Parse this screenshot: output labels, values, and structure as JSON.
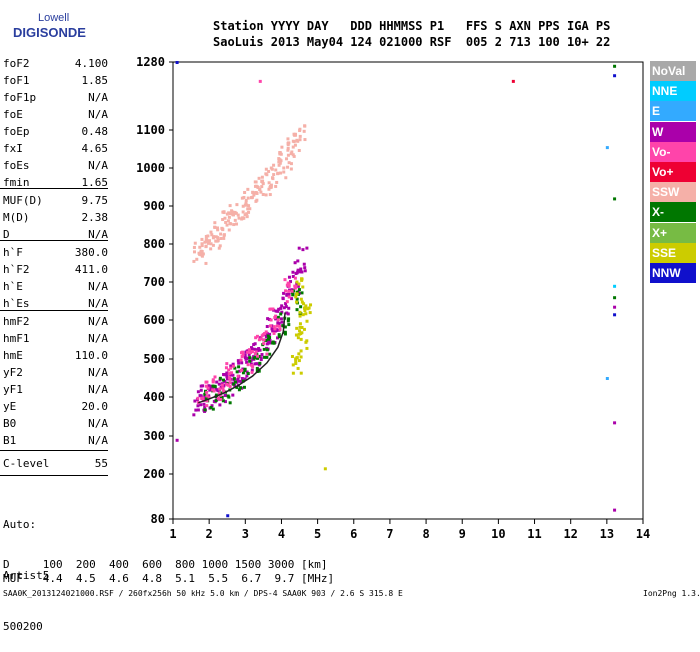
{
  "logo": {
    "line1": "Lowell",
    "line2": "DIGISONDE"
  },
  "header": {
    "line1": "Station YYYY DAY   DDD HHMMSS P1   FFS S AXN PPS IGA PS",
    "line2": "SaoLuis 2013 May04 124 021000 RSF  005 2 713 100 10+ 22"
  },
  "params": [
    {
      "name": "foF2",
      "value": "4.100"
    },
    {
      "name": "foF1",
      "value": "1.85"
    },
    {
      "name": "foF1p",
      "value": "N/A"
    },
    {
      "name": "foE",
      "value": "N/A"
    },
    {
      "name": "foEp",
      "value": "0.48"
    },
    {
      "name": "fxI",
      "value": "4.65"
    },
    {
      "name": "foEs",
      "value": "N/A"
    },
    {
      "name": "fmin",
      "value": "1.65"
    },
    {
      "name": "MUF(D)",
      "value": "9.75"
    },
    {
      "name": "M(D)",
      "value": "2.38"
    },
    {
      "name": "D",
      "value": "N/A"
    },
    {
      "name": "h`F",
      "value": "380.0"
    },
    {
      "name": "h`F2",
      "value": "411.0"
    },
    {
      "name": "h`E",
      "value": "N/A"
    },
    {
      "name": "h`Es",
      "value": "N/A"
    },
    {
      "name": "hmF2",
      "value": "N/A"
    },
    {
      "name": "hmF1",
      "value": "N/A"
    },
    {
      "name": "hmE",
      "value": "110.0"
    },
    {
      "name": "yF2",
      "value": "N/A"
    },
    {
      "name": "yF1",
      "value": "N/A"
    },
    {
      "name": "yE",
      "value": "20.0"
    },
    {
      "name": "B0",
      "value": "N/A"
    },
    {
      "name": "B1",
      "value": "N/A"
    },
    {
      "name": "C-level",
      "value": "55"
    }
  ],
  "auto": {
    "line1": "Auto:",
    "line2": "Artist5",
    "line3": "500200"
  },
  "muf_table": {
    "d_row": "D     100  200  400  600  800 1000 1500 3000 [km]",
    "muf_row": "MUF   4.4  4.5  4.6  4.8  5.1  5.5  6.7  9.7 [MHz]"
  },
  "footer": {
    "left": "SAA0K_2013124021000.RSF / 260fx256h 50 kHz 5.0 km / DPS-4 SAA0K 903 / 2.6 S 315.8 E",
    "right": "Ion2Png 1.3.17"
  },
  "legend": [
    {
      "label": "NoVal",
      "color": "#a9a9a9"
    },
    {
      "label": "NNE",
      "color": "#00ccff"
    },
    {
      "label": "E",
      "color": "#33aaff"
    },
    {
      "label": "W",
      "color": "#aa00aa"
    },
    {
      "label": "Vo-",
      "color": "#ff44aa"
    },
    {
      "label": "Vo+",
      "color": "#ee0033"
    },
    {
      "label": "SSW",
      "color": "#f5b0a8"
    },
    {
      "label": "X-",
      "color": "#007700"
    },
    {
      "label": "X+",
      "color": "#77bb44"
    },
    {
      "label": "SSE",
      "color": "#cccc00"
    },
    {
      "label": "NNW",
      "color": "#1010cc"
    }
  ],
  "chart_data": {
    "type": "scatter",
    "xlim": [
      1,
      14
    ],
    "ylim": [
      80,
      1280
    ],
    "x_ticks": [
      "1",
      "2",
      "3",
      "4",
      "5",
      "6",
      "7",
      "8",
      "9",
      "10",
      "11",
      "12",
      "13",
      "14"
    ],
    "y_ticks": [
      {
        "v": 80,
        "label": "80"
      },
      {
        "v": 200,
        "label": "200"
      },
      {
        "v": 300,
        "label": "300"
      },
      {
        "v": 400,
        "label": "400"
      },
      {
        "v": 500,
        "label": "500"
      },
      {
        "v": 600,
        "label": "600"
      },
      {
        "v": 700,
        "label": "700"
      },
      {
        "v": 800,
        "label": "800"
      },
      {
        "v": 900,
        "label": "900"
      },
      {
        "v": 1000,
        "label": "1000"
      },
      {
        "v": 1100,
        "label": "1100"
      },
      {
        "v": 1280,
        "label": "1280"
      }
    ],
    "trace_clusters": [
      {
        "color": "#f5b0a8",
        "region": "upper-diffuse",
        "points": [
          [
            1.7,
            780
          ],
          [
            1.9,
            800
          ],
          [
            2.1,
            820
          ],
          [
            2.3,
            840
          ],
          [
            2.5,
            860
          ],
          [
            2.7,
            880
          ],
          [
            2.9,
            900
          ],
          [
            3.1,
            920
          ],
          [
            3.3,
            940
          ],
          [
            3.5,
            960
          ],
          [
            3.7,
            980
          ],
          [
            3.9,
            1000
          ],
          [
            4.1,
            1030
          ],
          [
            4.3,
            1060
          ],
          [
            4.5,
            1090
          ]
        ]
      },
      {
        "color": "#aa00aa",
        "region": "lower-trace",
        "points": [
          [
            1.7,
            390
          ],
          [
            1.9,
            400
          ],
          [
            2.1,
            410
          ],
          [
            2.3,
            425
          ],
          [
            2.5,
            440
          ],
          [
            2.7,
            460
          ],
          [
            2.9,
            480
          ],
          [
            3.1,
            500
          ],
          [
            3.3,
            520
          ],
          [
            3.5,
            545
          ],
          [
            3.7,
            575
          ],
          [
            3.9,
            610
          ],
          [
            4.1,
            650
          ],
          [
            4.3,
            700
          ],
          [
            4.5,
            760
          ]
        ]
      },
      {
        "color": "#007700",
        "region": "lower-trace",
        "points": [
          [
            2.0,
            400
          ],
          [
            2.4,
            420
          ],
          [
            2.8,
            450
          ],
          [
            3.2,
            490
          ],
          [
            3.6,
            530
          ],
          [
            4.0,
            590
          ],
          [
            4.4,
            650
          ]
        ]
      },
      {
        "color": "#ff44aa",
        "region": "lower-trace",
        "points": [
          [
            1.8,
            410
          ],
          [
            2.2,
            430
          ],
          [
            2.6,
            460
          ],
          [
            3.0,
            500
          ],
          [
            3.4,
            540
          ],
          [
            3.8,
            600
          ],
          [
            4.2,
            680
          ]
        ]
      },
      {
        "color": "#cccc00",
        "region": "lower-trace",
        "points": [
          [
            4.4,
            500
          ],
          [
            4.5,
            560
          ],
          [
            4.6,
            620
          ],
          [
            4.5,
            680
          ]
        ]
      }
    ],
    "scaled_trace": [
      [
        1.7,
        385
      ],
      [
        2.0,
        395
      ],
      [
        2.4,
        410
      ],
      [
        2.8,
        430
      ],
      [
        3.2,
        455
      ],
      [
        3.6,
        490
      ],
      [
        3.9,
        530
      ],
      [
        4.05,
        570
      ],
      [
        4.1,
        620
      ]
    ],
    "scattered_points": [
      {
        "x": 1.1,
        "y": 1280,
        "color": "#1010cc"
      },
      {
        "x": 1.1,
        "y": 290,
        "color": "#aa00aa"
      },
      {
        "x": 2.5,
        "y": 90,
        "color": "#1010cc"
      },
      {
        "x": 3.4,
        "y": 1230,
        "color": "#ff44aa"
      },
      {
        "x": 5.2,
        "y": 215,
        "color": "#cccc00"
      },
      {
        "x": 10.4,
        "y": 1230,
        "color": "#ee0033"
      },
      {
        "x": 13.0,
        "y": 1055,
        "color": "#33aaff"
      },
      {
        "x": 13.0,
        "y": 450,
        "color": "#33aaff"
      },
      {
        "x": 13.2,
        "y": 1270,
        "color": "#007700"
      },
      {
        "x": 13.2,
        "y": 1245,
        "color": "#1010cc"
      },
      {
        "x": 13.2,
        "y": 920,
        "color": "#007700"
      },
      {
        "x": 13.2,
        "y": 690,
        "color": "#00ccff"
      },
      {
        "x": 13.2,
        "y": 660,
        "color": "#007700"
      },
      {
        "x": 13.2,
        "y": 635,
        "color": "#aa00aa"
      },
      {
        "x": 13.2,
        "y": 615,
        "color": "#1010cc"
      },
      {
        "x": 13.2,
        "y": 335,
        "color": "#aa00aa"
      },
      {
        "x": 13.2,
        "y": 105,
        "color": "#aa00aa"
      }
    ]
  }
}
